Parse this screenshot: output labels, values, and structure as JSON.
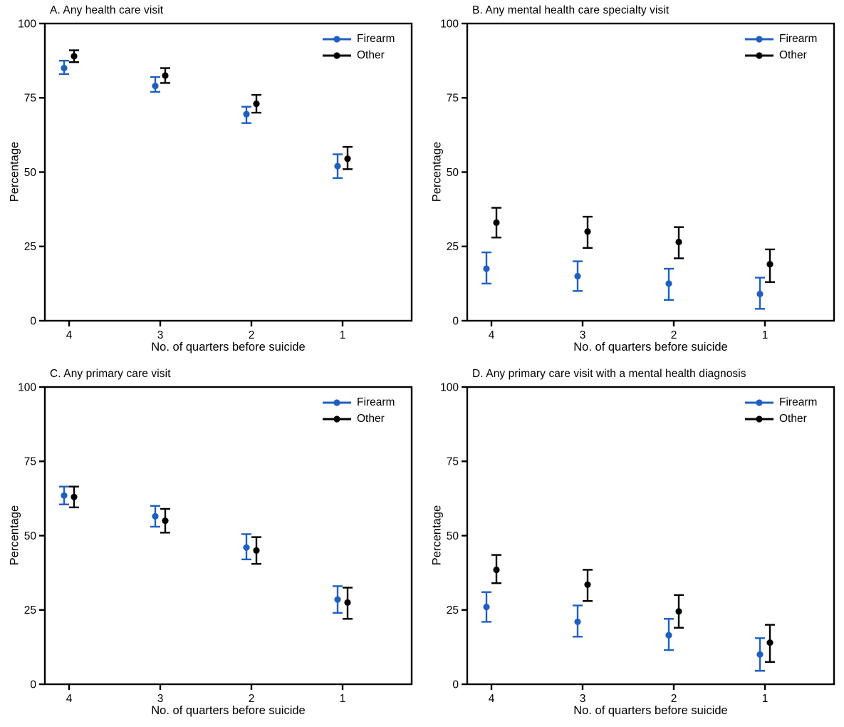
{
  "figure_legend": {
    "firearm_label": "Firearm",
    "other_label": "Other"
  },
  "colors": {
    "firearm": "#1f5fc1",
    "other": "#000000",
    "frame": "#000000"
  },
  "chart_data": [
    {
      "type": "scatter",
      "panel": "A",
      "title": "A. Any health care visit",
      "xlabel": "No. of quarters before suicide",
      "ylabel": "Percentage",
      "x_categories": [
        "4",
        "3",
        "2",
        "1"
      ],
      "y_ticks": [
        0,
        25,
        50,
        75,
        100
      ],
      "ylim": [
        0,
        100
      ],
      "grid": false,
      "legend_position": "top-right-inside",
      "series": [
        {
          "name": "Firearm",
          "color": "#1f5fc1",
          "values": [
            85,
            79,
            69.5,
            52
          ],
          "ci_low": [
            83,
            77,
            66.5,
            48
          ],
          "ci_high": [
            87.5,
            82,
            72,
            56
          ]
        },
        {
          "name": "Other",
          "color": "#000000",
          "values": [
            89,
            82.5,
            73,
            54.5
          ],
          "ci_low": [
            87,
            80,
            70,
            51
          ],
          "ci_high": [
            91,
            85,
            76,
            58.5
          ]
        }
      ]
    },
    {
      "type": "scatter",
      "panel": "B",
      "title": "B. Any mental health care specialty visit",
      "xlabel": "No. of quarters before suicide",
      "ylabel": "Percentage",
      "x_categories": [
        "4",
        "3",
        "2",
        "1"
      ],
      "y_ticks": [
        0,
        25,
        50,
        75,
        100
      ],
      "ylim": [
        0,
        100
      ],
      "grid": false,
      "legend_position": "top-right-inside",
      "series": [
        {
          "name": "Firearm",
          "color": "#1f5fc1",
          "values": [
            17.5,
            15,
            12.5,
            9
          ],
          "ci_low": [
            12.5,
            10,
            7,
            4
          ],
          "ci_high": [
            23,
            20,
            17.5,
            14.5
          ]
        },
        {
          "name": "Other",
          "color": "#000000",
          "values": [
            33,
            30,
            26.5,
            19
          ],
          "ci_low": [
            28,
            24.5,
            21,
            13
          ],
          "ci_high": [
            38,
            35,
            31.5,
            24
          ]
        }
      ]
    },
    {
      "type": "scatter",
      "panel": "C",
      "title": "C. Any primary care visit",
      "xlabel": "No. of quarters before suicide",
      "ylabel": "Percentage",
      "x_categories": [
        "4",
        "3",
        "2",
        "1"
      ],
      "y_ticks": [
        0,
        25,
        50,
        75,
        100
      ],
      "ylim": [
        0,
        100
      ],
      "grid": false,
      "legend_position": "top-right-inside",
      "series": [
        {
          "name": "Firearm",
          "color": "#1f5fc1",
          "values": [
            63.5,
            56.5,
            46,
            28.5
          ],
          "ci_low": [
            60.5,
            53,
            42,
            24
          ],
          "ci_high": [
            66.5,
            60,
            50.5,
            33
          ]
        },
        {
          "name": "Other",
          "color": "#000000",
          "values": [
            63,
            55,
            45,
            27.5
          ],
          "ci_low": [
            59.5,
            51,
            40.5,
            22
          ],
          "ci_high": [
            66.5,
            59,
            49.5,
            32.5
          ]
        }
      ]
    },
    {
      "type": "scatter",
      "panel": "D",
      "title": "D. Any primary care visit with a mental health diagnosis",
      "xlabel": "No. of quarters before suicide",
      "ylabel": "Percentage",
      "x_categories": [
        "4",
        "3",
        "2",
        "1"
      ],
      "y_ticks": [
        0,
        25,
        50,
        75,
        100
      ],
      "ylim": [
        0,
        100
      ],
      "grid": false,
      "legend_position": "top-right-inside",
      "series": [
        {
          "name": "Firearm",
          "color": "#1f5fc1",
          "values": [
            26,
            21,
            16.5,
            10
          ],
          "ci_low": [
            21,
            16,
            11.5,
            4.5
          ],
          "ci_high": [
            31,
            26.5,
            22,
            15.5
          ]
        },
        {
          "name": "Other",
          "color": "#000000",
          "values": [
            38.5,
            33.5,
            24.5,
            14
          ],
          "ci_low": [
            34,
            28,
            19,
            7.5
          ],
          "ci_high": [
            43.5,
            38.5,
            30,
            20
          ]
        }
      ]
    }
  ]
}
